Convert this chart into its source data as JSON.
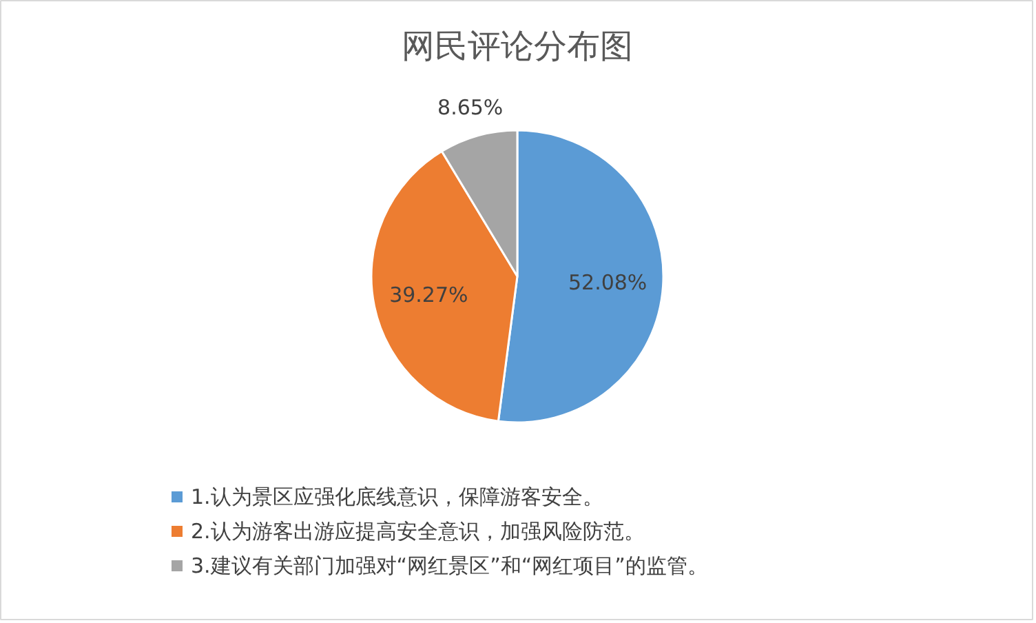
{
  "chart_data": {
    "type": "pie",
    "title": "网民评论分布图",
    "categories": [
      "1.认为景区应强化底线意识，保障游客安全。",
      "2.认为游客出游应提高安全意识，加强风险防范。",
      "3.建议有关部门加强对“网红景区”和“网红项目”的监管。"
    ],
    "values": [
      52.08,
      39.27,
      8.65
    ],
    "colors": [
      "#5b9bd5",
      "#ed7d31",
      "#a5a5a5"
    ],
    "value_labels": [
      "52.08%",
      "39.27%",
      "8.65%"
    ],
    "legend": "bottom"
  }
}
